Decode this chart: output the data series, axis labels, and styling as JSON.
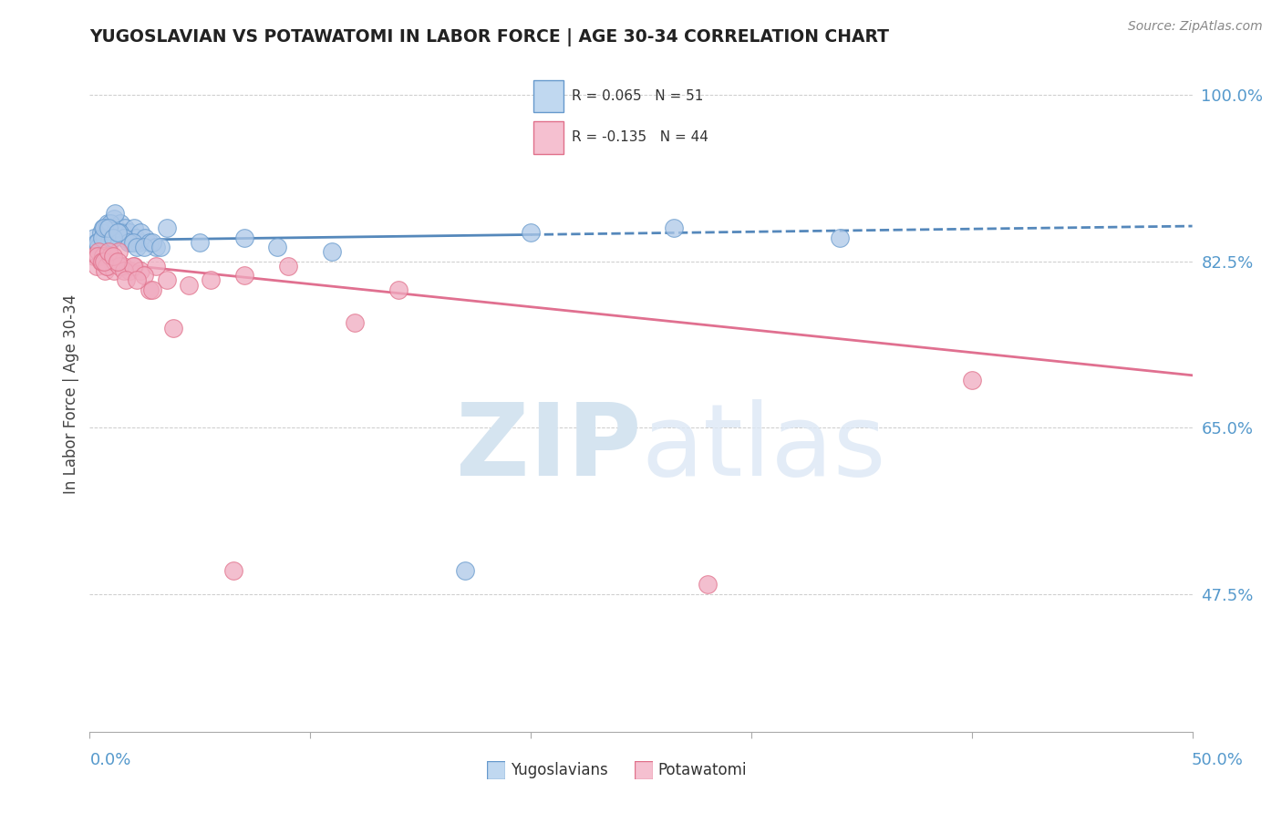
{
  "title": "YUGOSLAVIAN VS POTAWATOMI IN LABOR FORCE | AGE 30-34 CORRELATION CHART",
  "source": "Source: ZipAtlas.com",
  "ylabel": "In Labor Force | Age 30-34",
  "y_ticks": [
    47.5,
    65.0,
    82.5,
    100.0
  ],
  "y_tick_labels": [
    "47.5%",
    "65.0%",
    "82.5%",
    "100.0%"
  ],
  "xlim": [
    0.0,
    50.0
  ],
  "ylim": [
    33.0,
    104.0
  ],
  "blue_R": 0.065,
  "blue_N": 51,
  "pink_R": -0.135,
  "pink_N": 44,
  "blue_color": "#adc8e8",
  "pink_color": "#f0aabf",
  "blue_edge_color": "#6699cc",
  "pink_edge_color": "#e0708a",
  "blue_line_color": "#5588bb",
  "pink_line_color": "#e07090",
  "legend_box_blue": "#c0d8f0",
  "legend_box_pink": "#f5c0d0",
  "watermark_color": "#d5e4f0",
  "background": "#ffffff",
  "blue_scatter_x": [
    0.2,
    0.3,
    0.4,
    0.5,
    0.6,
    0.7,
    0.8,
    0.9,
    1.0,
    1.1,
    1.2,
    1.3,
    1.4,
    1.5,
    1.6,
    1.7,
    1.8,
    1.9,
    2.0,
    2.1,
    2.2,
    2.3,
    2.5,
    2.7,
    3.0,
    3.5,
    5.0,
    7.0,
    8.5,
    11.0,
    17.0,
    20.0,
    26.5,
    34.0,
    0.35,
    0.55,
    0.75,
    0.95,
    1.15,
    1.35,
    1.55,
    1.75,
    1.95,
    2.15,
    2.45,
    2.85,
    0.65,
    0.85,
    1.05,
    1.25,
    3.2
  ],
  "blue_scatter_y": [
    85.0,
    84.5,
    84.0,
    85.5,
    86.0,
    85.0,
    86.5,
    84.5,
    85.0,
    87.0,
    86.0,
    85.5,
    86.5,
    85.5,
    86.0,
    85.0,
    85.5,
    84.5,
    86.0,
    85.0,
    84.5,
    85.5,
    85.0,
    84.5,
    84.0,
    86.0,
    84.5,
    85.0,
    84.0,
    83.5,
    50.0,
    85.5,
    86.0,
    85.0,
    84.5,
    85.0,
    86.0,
    86.5,
    87.5,
    85.5,
    85.0,
    84.5,
    84.5,
    84.0,
    84.0,
    84.5,
    86.0,
    86.0,
    85.0,
    85.5,
    84.0
  ],
  "pink_scatter_x": [
    0.2,
    0.3,
    0.4,
    0.5,
    0.6,
    0.7,
    0.8,
    0.9,
    1.0,
    1.1,
    1.3,
    1.5,
    1.8,
    2.0,
    2.3,
    2.7,
    3.0,
    3.5,
    4.5,
    5.5,
    7.0,
    9.0,
    12.0,
    14.0,
    0.35,
    0.55,
    0.75,
    0.95,
    1.15,
    1.35,
    1.55,
    1.95,
    2.45,
    0.65,
    0.85,
    1.05,
    1.25,
    1.65,
    2.15,
    2.85,
    3.8,
    6.5,
    28.0,
    40.0
  ],
  "pink_scatter_y": [
    83.0,
    82.0,
    83.5,
    82.5,
    83.0,
    81.5,
    82.0,
    83.0,
    82.5,
    81.5,
    83.5,
    82.0,
    81.5,
    82.0,
    81.5,
    79.5,
    82.0,
    80.5,
    80.0,
    80.5,
    81.0,
    82.0,
    76.0,
    79.5,
    83.0,
    82.5,
    82.0,
    83.0,
    82.5,
    82.0,
    81.5,
    82.0,
    81.0,
    82.5,
    83.5,
    83.0,
    82.5,
    80.5,
    80.5,
    79.5,
    75.5,
    50.0,
    48.5,
    70.0
  ],
  "blue_trend_x": [
    0.0,
    50.0
  ],
  "blue_trend_y": [
    84.7,
    86.2
  ],
  "pink_trend_x": [
    0.0,
    50.0
  ],
  "pink_trend_y": [
    82.5,
    70.5
  ]
}
